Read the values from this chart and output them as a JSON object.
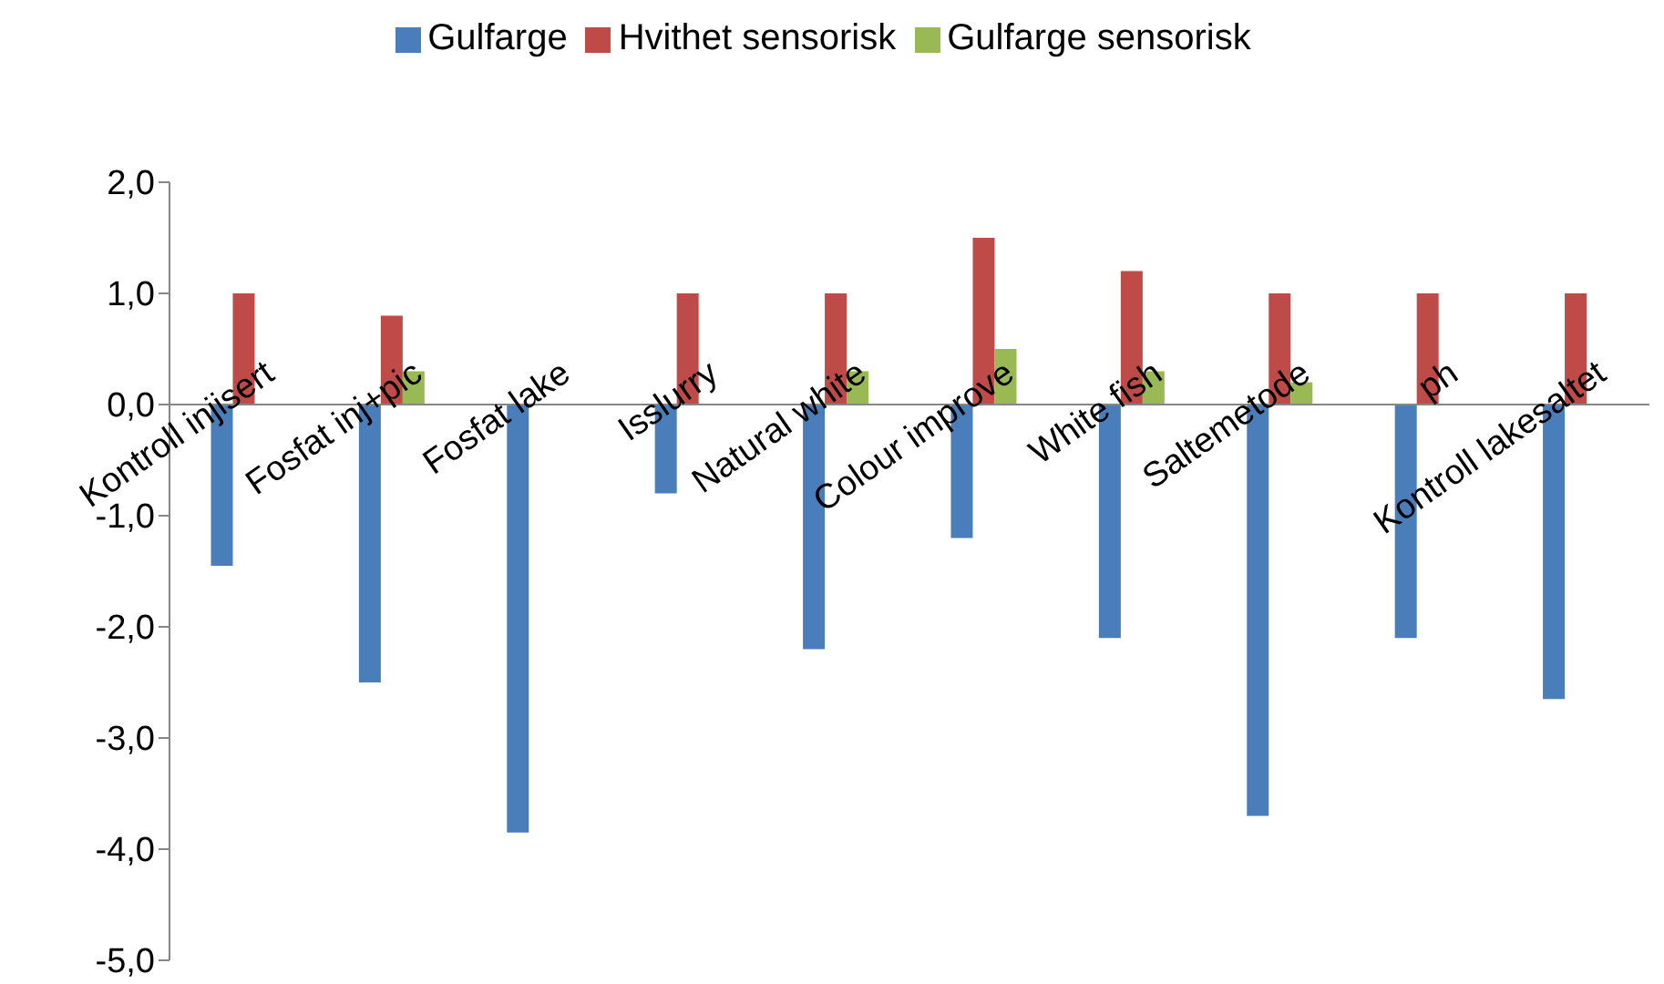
{
  "chart_data": {
    "type": "bar",
    "categories": [
      "Kontroll injisert",
      "Fosfat inj+pic",
      "Fosfat lake",
      "Isslurry",
      "Natural white",
      "Colour improve",
      "White fish",
      "Saltemetode",
      "ph",
      "Kontroll lakesaltet"
    ],
    "series": [
      {
        "name": "Gulfarge",
        "color": "#4a7ebb",
        "values": [
          -1.45,
          -2.5,
          -3.85,
          -0.8,
          -2.2,
          -1.2,
          -2.1,
          -3.7,
          -2.1,
          -2.65
        ]
      },
      {
        "name": "Hvithet sensorisk",
        "color": "#be4b48",
        "values": [
          1.0,
          0.8,
          null,
          1.0,
          1.0,
          1.5,
          1.2,
          1.0,
          1.0,
          1.0
        ]
      },
      {
        "name": "Gulfarge sensorisk",
        "color": "#98b954",
        "values": [
          null,
          0.3,
          null,
          null,
          0.3,
          0.5,
          0.3,
          0.2,
          null,
          null
        ]
      }
    ],
    "ylim": [
      -5,
      2
    ],
    "yticks": [
      {
        "value": -5,
        "label": "-5,0"
      },
      {
        "value": -4,
        "label": "-4,0"
      },
      {
        "value": -3,
        "label": "-3,0"
      },
      {
        "value": -2,
        "label": "-2,0"
      },
      {
        "value": -1,
        "label": "-1,0"
      },
      {
        "value": 0,
        "label": "0,0"
      },
      {
        "value": 1,
        "label": "1,0"
      },
      {
        "value": 2,
        "label": "2,0"
      }
    ],
    "grid": false,
    "legend": "top"
  }
}
